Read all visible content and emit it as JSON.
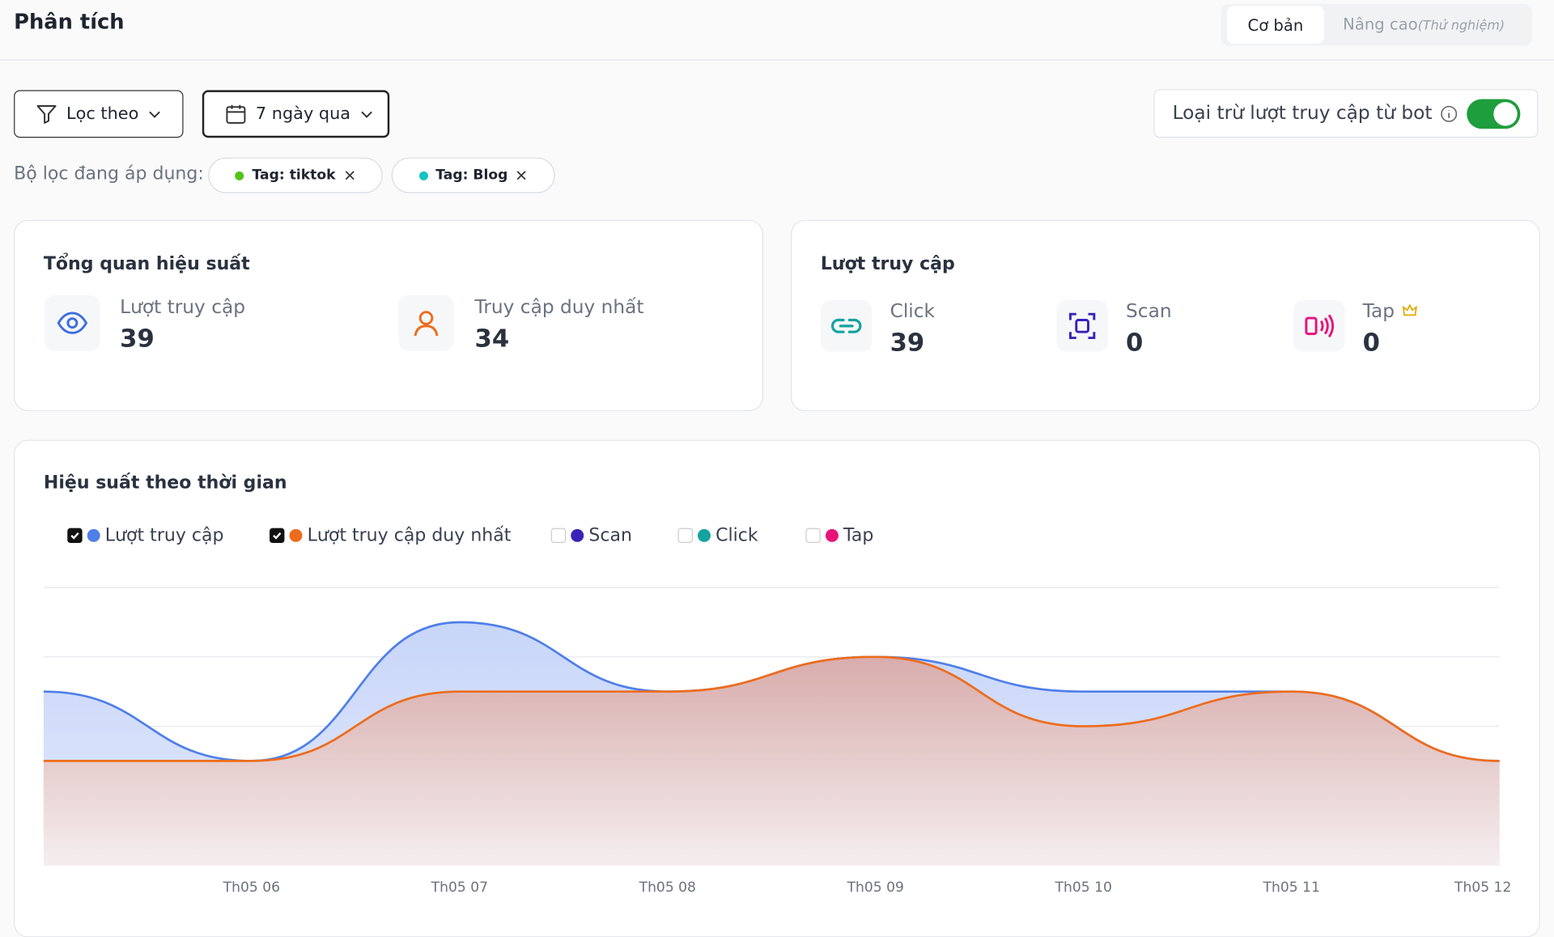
{
  "header": {
    "title": "Phân tích",
    "tabs": [
      {
        "label": "Cơ bản"
      },
      {
        "label": "Nâng cao",
        "note": "(Thử nghiệm)"
      }
    ]
  },
  "filters": {
    "filter_button": "Lọc theo",
    "date_button": "7 ngày qua",
    "bot_toggle": "Loại trừ lượt truy cập từ bot",
    "applied_label": "Bộ lọc đang áp dụng:",
    "chips": [
      {
        "label": "Tag: tiktok",
        "color": "#52c41a"
      },
      {
        "label": "Tag: Blog",
        "color": "#13c2c2"
      }
    ]
  },
  "overview": {
    "title": "Tổng quan hiệu suất",
    "items": [
      {
        "label": "Lượt truy cập",
        "value": "39"
      },
      {
        "label": "Truy cập duy nhất",
        "value": "34"
      }
    ]
  },
  "visits": {
    "title": "Lượt truy cập",
    "items": [
      {
        "label": "Click",
        "value": "39"
      },
      {
        "label": "Scan",
        "value": "0"
      },
      {
        "label": "Tap",
        "value": "0"
      }
    ]
  },
  "chart_data": {
    "type": "area",
    "title": "Hiệu suất theo thời gian",
    "categories": [
      null,
      "Th05 06",
      "Th05 07",
      "Th05 08",
      "Th05 09",
      "Th05 10",
      "Th05 11",
      "Th05 12"
    ],
    "series": [
      {
        "name": "Lượt truy cập",
        "color": "#4f7fe8",
        "visible": true,
        "values": [
          5,
          3,
          7,
          5,
          6,
          5,
          5,
          3
        ]
      },
      {
        "name": "Lượt truy cập duy nhất",
        "color": "#ed6c1c",
        "visible": true,
        "values": [
          3,
          3,
          5,
          5,
          6,
          4,
          5,
          3
        ]
      },
      {
        "name": "Scan",
        "color": "#3a22b8",
        "visible": false
      },
      {
        "name": "Click",
        "color": "#14a3a0",
        "visible": false
      },
      {
        "name": "Tap",
        "color": "#e8137a",
        "visible": false
      }
    ],
    "ylim": [
      0,
      8
    ],
    "yticks": [
      0,
      2,
      4,
      6,
      8
    ],
    "grid": true
  }
}
